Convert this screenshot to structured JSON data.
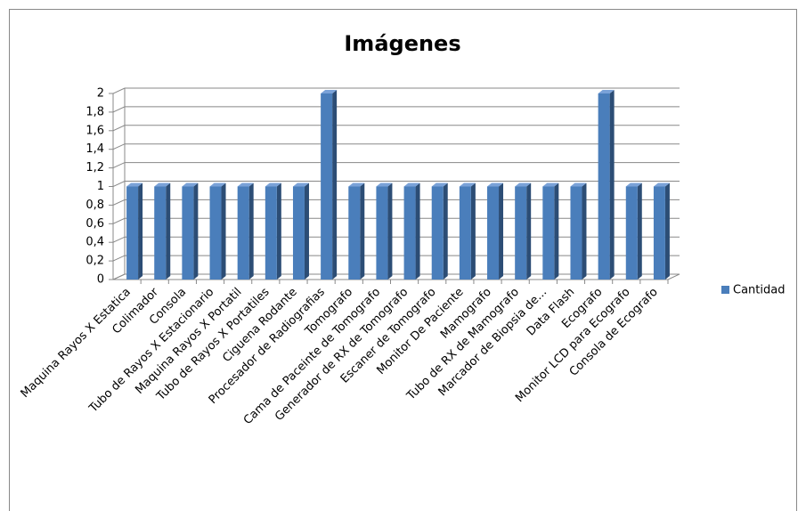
{
  "chart_data": {
    "type": "bar",
    "title": "Imágenes",
    "categories": [
      "Maquina Rayos X Estatica",
      "Colimador",
      "Consola",
      "Tubo de Rayos X Estacionario",
      "Maquina Rayos X Portatil",
      "Tubo de Rayos X Portatiles",
      "Ciguena Rodante",
      "Procesador de Radiografias",
      "Tomografo",
      "Cama de Paceinte de Tomografo",
      "Generador de RX de Tomografo",
      "Escaner de Tomografo",
      "Monitor De Paciente",
      "Mamografo",
      "Tubo de RX de Mamografo",
      "Marcador de Biopsia de...",
      "Data Flash",
      "Ecografo",
      "Monitor LCD para Ecografo",
      "Consola de Ecografo"
    ],
    "series": [
      {
        "name": "Cantidad",
        "color": "#4a7ebb",
        "values": [
          1,
          1,
          1,
          1,
          1,
          1,
          1,
          2,
          1,
          1,
          1,
          1,
          1,
          1,
          1,
          1,
          1,
          2,
          1,
          1
        ]
      }
    ],
    "ylim": [
      0,
      2
    ],
    "yticks": [
      0,
      {
        "value": 0.2,
        "label": "0,2"
      },
      {
        "value": 0.4,
        "label": "0,4"
      },
      {
        "value": 0.6,
        "label": "0,6"
      },
      {
        "value": 0.8,
        "label": "0,8"
      },
      1,
      {
        "value": 1.2,
        "label": "1,2"
      },
      {
        "value": 1.4,
        "label": "1,4"
      },
      {
        "value": 1.6,
        "label": "1,6"
      },
      {
        "value": 1.8,
        "label": "1,8"
      },
      2
    ],
    "grid": true,
    "legend": "right"
  }
}
